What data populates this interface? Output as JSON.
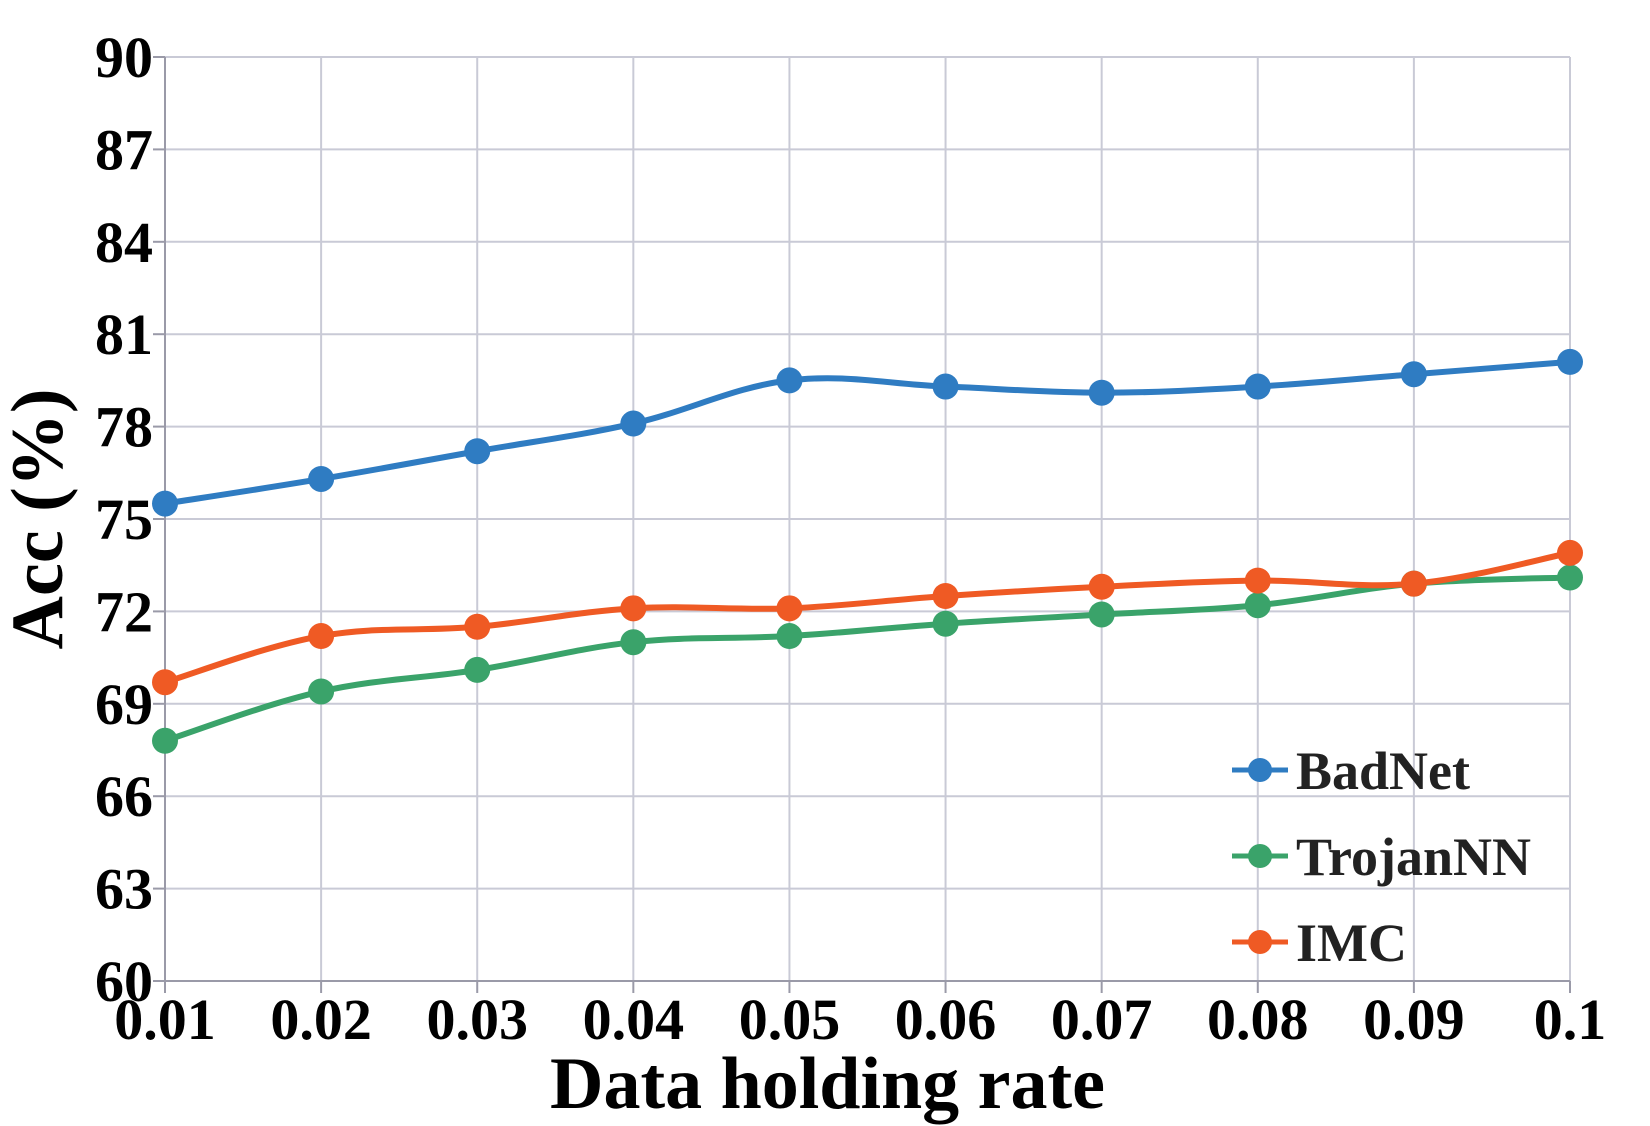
{
  "chart_data": {
    "type": "line",
    "title": "",
    "xlabel": "Data holding rate",
    "ylabel": "Acc (%)",
    "x": [
      0.01,
      0.02,
      0.03,
      0.04,
      0.05,
      0.06,
      0.07,
      0.08,
      0.09,
      0.1
    ],
    "x_tick_labels": [
      "0.01",
      "0.02",
      "0.03",
      "0.04",
      "0.05",
      "0.06",
      "0.07",
      "0.08",
      "0.09",
      "0.1"
    ],
    "y_ticks": [
      60,
      63,
      66,
      69,
      72,
      75,
      78,
      81,
      84,
      87,
      90
    ],
    "ylim": [
      60,
      90
    ],
    "grid": true,
    "legend_position": "bottom-right",
    "series": [
      {
        "name": "BadNet",
        "color": "#2f7cc2",
        "values": [
          75.5,
          76.3,
          77.2,
          78.1,
          79.5,
          79.3,
          79.1,
          79.3,
          79.7,
          80.1
        ]
      },
      {
        "name": "TrojanNN",
        "color": "#3aa36a",
        "values": [
          67.8,
          69.4,
          70.1,
          71.0,
          71.2,
          71.6,
          71.9,
          72.2,
          72.9,
          73.1
        ]
      },
      {
        "name": "IMC",
        "color": "#ef5a24",
        "values": [
          69.7,
          71.2,
          71.5,
          72.1,
          72.1,
          72.5,
          72.8,
          73.0,
          72.9,
          73.9
        ]
      }
    ]
  }
}
